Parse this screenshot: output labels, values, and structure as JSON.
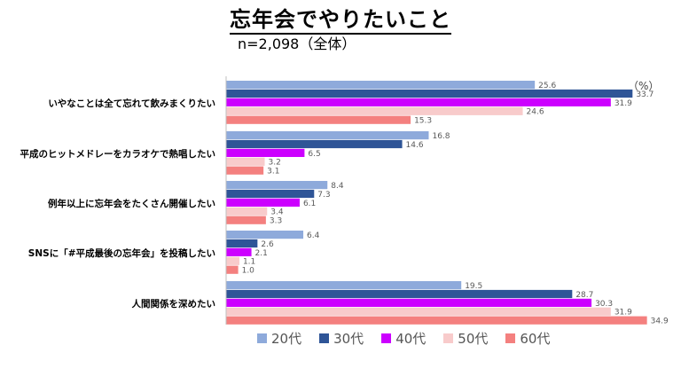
{
  "header": {
    "title": "忘年会でやりたいこと",
    "subtitle": "n=2,098（全体）",
    "unit": "（%）"
  },
  "chart_data": {
    "type": "bar",
    "orientation": "horizontal",
    "categories": [
      "いやなことは全て忘れて飲みまくりたい",
      "平成のヒットメドレーをカラオケで熱唱したい",
      "例年以上に忘年会をたくさん開催したい",
      "SNSに「#平成最後の忘年会」を投稿したい",
      "人間関係を深めたい"
    ],
    "series": [
      {
        "name": "20代",
        "color": "#8eaadb",
        "values": [
          25.6,
          16.8,
          8.4,
          6.4,
          19.5
        ]
      },
      {
        "name": "30代",
        "color": "#2f5597",
        "values": [
          33.7,
          14.6,
          7.3,
          2.6,
          28.7
        ]
      },
      {
        "name": "40代",
        "color": "#cc00ff",
        "values": [
          31.9,
          6.5,
          6.1,
          2.1,
          30.3
        ]
      },
      {
        "name": "50代",
        "color": "#f8cbcb",
        "values": [
          24.6,
          3.2,
          3.4,
          1.1,
          31.9
        ]
      },
      {
        "name": "60代",
        "color": "#f4807f",
        "values": [
          15.3,
          3.1,
          3.3,
          1.0,
          34.9
        ]
      }
    ],
    "xlim": [
      0,
      40
    ],
    "legend": "bottom",
    "grid": false
  }
}
